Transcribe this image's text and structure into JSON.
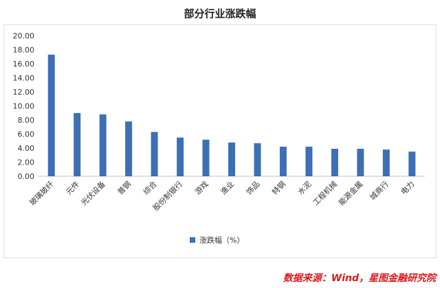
{
  "chart_data": {
    "type": "bar",
    "title": "部分行业涨跌幅",
    "categories": [
      "玻璃玻纤",
      "元件",
      "光伏设备",
      "普钢",
      "综合",
      "股份制银行",
      "游戏",
      "渔业",
      "饰品",
      "特钢",
      "水泥",
      "工程机械",
      "能源金属",
      "城商行",
      "电力"
    ],
    "series": [
      {
        "name": "涨跌幅（%）",
        "values": [
          17.3,
          9.0,
          8.8,
          7.8,
          6.3,
          5.5,
          5.2,
          4.8,
          4.7,
          4.2,
          4.2,
          3.9,
          3.9,
          3.8,
          3.5
        ]
      }
    ],
    "ylim": [
      0,
      20
    ],
    "yticks": [
      "0.00",
      "2.00",
      "4.00",
      "6.00",
      "8.00",
      "10.00",
      "12.00",
      "14.00",
      "16.00",
      "18.00",
      "20.00"
    ],
    "grid": false,
    "legend_position": "bottom",
    "bar_color": "#3d6fb6"
  },
  "source_text": "数据来源：Wind，星图金融研究院"
}
